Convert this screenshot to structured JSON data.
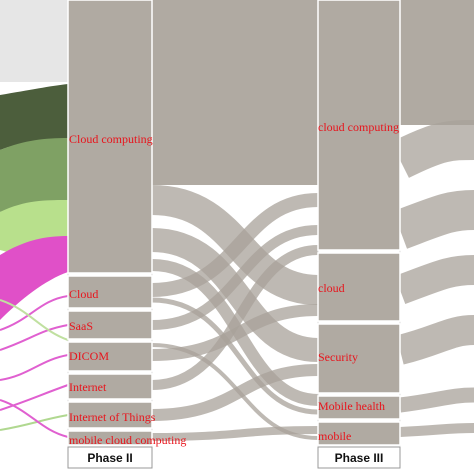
{
  "columns": [
    {
      "label": "Phase II",
      "nodes": [
        "Cloud computing",
        "Cloud",
        "SaaS",
        "DICOM",
        "Internet",
        "Internet of Things",
        "mobile cloud computing"
      ]
    },
    {
      "label": "Phase III",
      "nodes": [
        "cloud computing",
        "cloud",
        "Security",
        "Mobile health",
        "mobile"
      ]
    }
  ]
}
